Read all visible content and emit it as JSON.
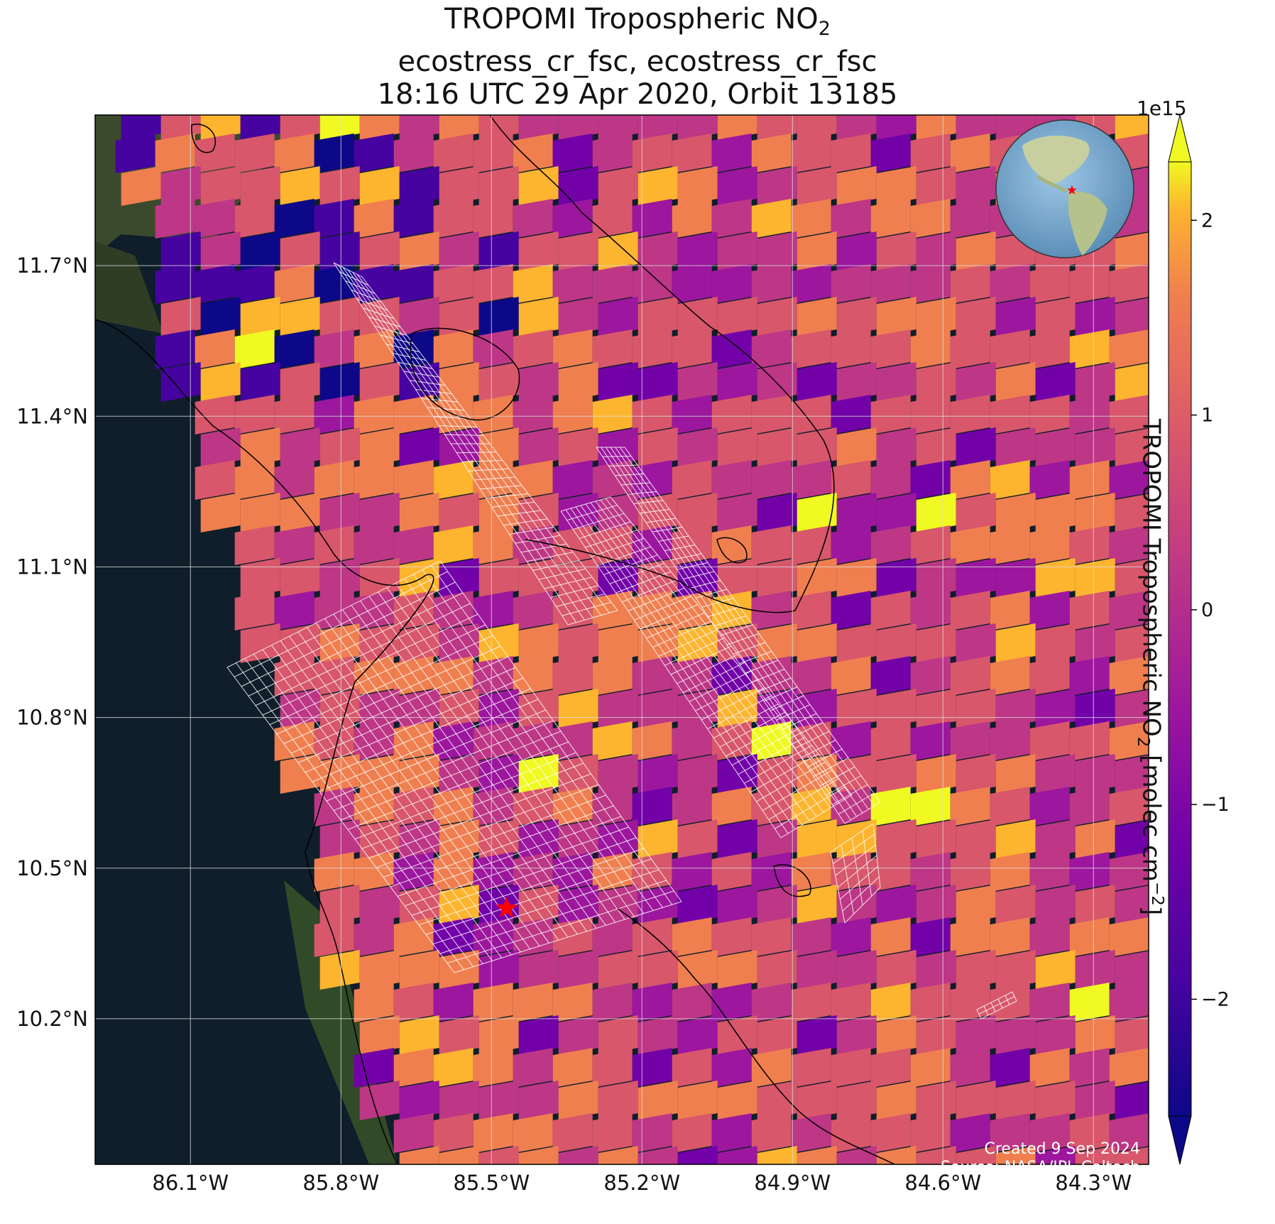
{
  "title": {
    "line1": "TROPOMI Tropospheric NO",
    "line1_sub": "2",
    "line2": "ecostress_cr_fsc, ecostress_cr_fsc",
    "line3": "18:16 UTC 29 Apr 2020, Orbit 13185"
  },
  "map": {
    "lat_ticks": [
      "11.7°N",
      "11.4°N",
      "11.1°N",
      "10.8°N",
      "10.5°N",
      "10.2°N"
    ],
    "lon_ticks": [
      "86.1°W",
      "85.8°W",
      "85.5°W",
      "85.2°W",
      "84.9°W",
      "84.6°W",
      "84.3°W"
    ],
    "target_marker": {
      "name": "target-star",
      "color": "#ff0000",
      "lon": -85.47,
      "lat": 10.42
    },
    "inset_globe": {
      "description": "globe-icon",
      "marker_color": "#ff0000"
    },
    "colors": {
      "ocean": "#0f1e2a",
      "land": "#3b4a2c",
      "swath_outline": "#ffffff",
      "coastline": "#000000",
      "grid": "#dddddd"
    }
  },
  "colorbar": {
    "exponent": "1e15",
    "label_text": "TROPOMI Tropospheric NO",
    "label_sub": "2",
    "label_unit": " [molec cm",
    "label_sup": "−2",
    "label_end": "]",
    "ticks": [
      "2",
      "1",
      "0",
      "−1",
      "−2"
    ],
    "colormap": "plasma",
    "extend": "both"
  },
  "credits": {
    "created": "Created 9 Sep 2024",
    "source": "Source: NASA/JPL-Caltech"
  }
}
